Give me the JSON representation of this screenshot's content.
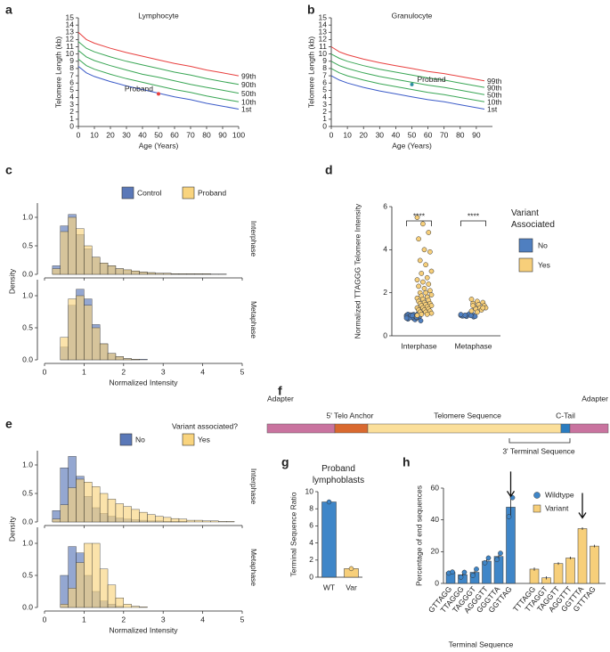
{
  "chart_data": [
    {
      "type": "line",
      "label": "a",
      "title": "Lymphocyte",
      "xlabel": "Age (Years)",
      "ylabel": "Telomere Length (kb)",
      "x": [
        0,
        5,
        10,
        20,
        30,
        40,
        50,
        60,
        70,
        80,
        90,
        100
      ],
      "xlim": [
        0,
        100
      ],
      "xticks": [
        0,
        10,
        20,
        30,
        40,
        50,
        60,
        70,
        80,
        90,
        100
      ],
      "ylim": [
        0,
        15
      ],
      "yticks": [
        0,
        1,
        2,
        3,
        4,
        5,
        6,
        7,
        8,
        9,
        10,
        11,
        12,
        13,
        14,
        15
      ],
      "series": [
        {
          "name": "99th",
          "color": "#e8403f",
          "values": [
            13,
            12,
            11.5,
            10.8,
            10.2,
            9.7,
            9.2,
            8.7,
            8.3,
            7.8,
            7.4,
            7.0
          ]
        },
        {
          "name": "90th",
          "color": "#3aa655",
          "values": [
            11.7,
            10.8,
            10.3,
            9.6,
            9.0,
            8.5,
            8.0,
            7.5,
            7.1,
            6.6,
            6.2,
            5.8
          ]
        },
        {
          "name": "50th",
          "color": "#3aa655",
          "values": [
            10.5,
            9.6,
            9.1,
            8.4,
            7.8,
            7.2,
            6.8,
            6.3,
            5.8,
            5.4,
            5.0,
            4.6
          ]
        },
        {
          "name": "10th",
          "color": "#3aa655",
          "values": [
            9.3,
            8.4,
            7.9,
            7.2,
            6.6,
            6.1,
            5.6,
            5.1,
            4.7,
            4.2,
            3.8,
            3.4
          ]
        },
        {
          "name": "1st",
          "color": "#3b5bc8",
          "values": [
            8.3,
            7.4,
            6.9,
            6.2,
            5.6,
            5.1,
            4.6,
            4.1,
            3.7,
            3.2,
            2.8,
            2.4
          ]
        }
      ],
      "points": [
        {
          "name": "Proband",
          "x": 50,
          "y": 4.5,
          "color": "#e8403f"
        }
      ]
    },
    {
      "type": "line",
      "label": "b",
      "title": "Granulocyte",
      "xlabel": "Age (Years)",
      "ylabel": "Telomere Length (kb)",
      "x": [
        0,
        5,
        10,
        20,
        30,
        40,
        50,
        60,
        70,
        80,
        95
      ],
      "xlim": [
        0,
        100
      ],
      "xticks": [
        0,
        10,
        20,
        30,
        40,
        50,
        60,
        70,
        80,
        90
      ],
      "ylim": [
        0,
        15
      ],
      "yticks": [
        0,
        1,
        2,
        3,
        4,
        5,
        6,
        7,
        8,
        9,
        10,
        11,
        12,
        13,
        14,
        15
      ],
      "series": [
        {
          "name": "99th",
          "color": "#e8403f",
          "values": [
            11.0,
            10.3,
            9.9,
            9.3,
            8.8,
            8.4,
            8.0,
            7.6,
            7.3,
            6.9,
            6.3
          ]
        },
        {
          "name": "90th",
          "color": "#3aa655",
          "values": [
            10.0,
            9.4,
            9.0,
            8.4,
            7.9,
            7.5,
            7.1,
            6.7,
            6.4,
            6.0,
            5.4
          ]
        },
        {
          "name": "50th",
          "color": "#3aa655",
          "values": [
            9.0,
            8.4,
            8.0,
            7.4,
            6.9,
            6.5,
            6.1,
            5.7,
            5.4,
            5.0,
            4.4
          ]
        },
        {
          "name": "10th",
          "color": "#3aa655",
          "values": [
            8.0,
            7.4,
            7.0,
            6.4,
            5.9,
            5.5,
            5.1,
            4.7,
            4.4,
            4.0,
            3.4
          ]
        },
        {
          "name": "1st",
          "color": "#3b5bc8",
          "values": [
            7.0,
            6.4,
            6.0,
            5.4,
            4.9,
            4.5,
            4.1,
            3.7,
            3.4,
            3.0,
            2.4
          ]
        }
      ],
      "points": [
        {
          "name": "Proband",
          "x": 50,
          "y": 5.8,
          "color": "#2f8fa0"
        }
      ]
    },
    {
      "type": "histogram",
      "label": "c",
      "xlabel": "Normalized Intensity",
      "ylabel": "Density",
      "bins": [
        0,
        0.2,
        0.4,
        0.6,
        0.8,
        1,
        1.2,
        1.4,
        1.6,
        1.8,
        2,
        2.2,
        2.4,
        2.6,
        2.8,
        3,
        3.2,
        3.4,
        3.6,
        3.8,
        4,
        4.2,
        4.4,
        4.6,
        4.8,
        5
      ],
      "xlim": [
        0,
        5
      ],
      "xticks": [
        0,
        1,
        2,
        3,
        4,
        5
      ],
      "ylim": [
        0,
        1.25
      ],
      "yticks": [
        {
          "value": 0,
          "label": "0.0"
        },
        {
          "value": 0.5,
          "label": "0.5"
        },
        {
          "value": 1,
          "label": "1.0"
        }
      ],
      "facets": [
        "Interphase",
        "Metaphase"
      ],
      "series": [
        {
          "name": "Control",
          "color": "#5a78b8",
          "values": [
            [
              0,
              0.15,
              0.85,
              1.05,
              0.7,
              0.45,
              0.3,
              0.2,
              0.15,
              0.1,
              0.07,
              0.05,
              0.04,
              0.03,
              0.02,
              0.02,
              0.01,
              0.01,
              0.01,
              0.01,
              0.01,
              0.005,
              0.005,
              0,
              0
            ],
            [
              0,
              0,
              0.2,
              0.85,
              1.1,
              0.95,
              0.55,
              0.25,
              0.1,
              0.05,
              0.02,
              0.01,
              0.01,
              0,
              0,
              0,
              0,
              0,
              0,
              0,
              0,
              0,
              0,
              0,
              0
            ]
          ]
        },
        {
          "name": "Proband",
          "color": "#f9d47e",
          "values": [
            [
              0,
              0.1,
              0.75,
              1.0,
              0.8,
              0.5,
              0.3,
              0.2,
              0.15,
              0.1,
              0.08,
              0.06,
              0.04,
              0.03,
              0.02,
              0.02,
              0.01,
              0.01,
              0.01,
              0.01,
              0.01,
              0.005,
              0.005,
              0,
              0
            ],
            [
              0,
              0,
              0.35,
              0.95,
              1.0,
              0.85,
              0.5,
              0.25,
              0.1,
              0.05,
              0.02,
              0.01,
              0,
              0,
              0,
              0,
              0,
              0,
              0,
              0,
              0,
              0,
              0,
              0,
              0
            ]
          ]
        }
      ]
    },
    {
      "type": "dots",
      "label": "d",
      "ylabel": "Normalized TTAGGG Telomere Intensity",
      "legend_title": "Variant Associated",
      "categories": [
        "Interphase",
        "Metaphase"
      ],
      "ylim": [
        0,
        6
      ],
      "yticks": [
        0,
        2,
        4,
        6
      ],
      "annotations": [
        "****",
        "****"
      ],
      "series": [
        {
          "name": "No",
          "color": "#4f7fc0",
          "values": [
            [
              0.95,
              0.9,
              0.85,
              1.0,
              0.8,
              0.92,
              0.88,
              0.75,
              1.05,
              0.97,
              0.83,
              0.9,
              0.86,
              0.93,
              0.78,
              0.99,
              0.89,
              0.84,
              0.91,
              0.7,
              0.96,
              0.87,
              0.82,
              0.94,
              1.02
            ],
            [
              0.95,
              0.9,
              1.0,
              0.92,
              0.97,
              0.88,
              0.93,
              1.02,
              0.9,
              0.96,
              0.94,
              0.99
            ]
          ]
        },
        {
          "name": "Yes",
          "color": "#f7cf7a",
          "values": [
            [
              5.5,
              5.2,
              4.8,
              4.5,
              4.0,
              3.9,
              3.5,
              3.3,
              3.0,
              2.9,
              2.7,
              2.6,
              2.5,
              2.4,
              2.3,
              2.2,
              2.1,
              2.0,
              2.0,
              1.9,
              1.85,
              1.8,
              1.75,
              1.7,
              1.65,
              1.6,
              1.55,
              1.5,
              1.5,
              1.45,
              1.4,
              1.4,
              1.35,
              1.3,
              1.3,
              1.25,
              1.2,
              1.2,
              1.15,
              1.1,
              1.1,
              1.05,
              1.0,
              1.0,
              0.95
            ],
            [
              1.7,
              1.6,
              1.55,
              1.5,
              1.45,
              1.4,
              1.35,
              1.3,
              1.3,
              1.25,
              1.2,
              1.15,
              1.1,
              1.3,
              1.4
            ]
          ]
        }
      ]
    },
    {
      "type": "histogram",
      "label": "e",
      "xlabel": "Normalized Intensity",
      "ylabel": "Density",
      "legend_title": "Variant associated?",
      "bins": [
        0,
        0.2,
        0.4,
        0.6,
        0.8,
        1,
        1.2,
        1.4,
        1.6,
        1.8,
        2,
        2.2,
        2.4,
        2.6,
        2.8,
        3,
        3.2,
        3.4,
        3.6,
        3.8,
        4,
        4.2,
        4.4,
        4.6,
        4.8,
        5
      ],
      "xlim": [
        0,
        5
      ],
      "xticks": [
        0,
        1,
        2,
        3,
        4,
        5
      ],
      "ylim": [
        0,
        1.25
      ],
      "yticks": [
        {
          "value": 0,
          "label": "0.0"
        },
        {
          "value": 0.5,
          "label": "0.5"
        },
        {
          "value": 1,
          "label": "1.0"
        }
      ],
      "facets": [
        "Interphase",
        "Metaphase"
      ],
      "series": [
        {
          "name": "No",
          "color": "#5a78b8",
          "values": [
            [
              0,
              0.2,
              0.95,
              1.15,
              0.8,
              0.45,
              0.25,
              0.15,
              0.1,
              0.07,
              0.05,
              0.04,
              0.03,
              0.02,
              0.02,
              0.01,
              0.01,
              0.01,
              0,
              0,
              0,
              0,
              0,
              0,
              0
            ],
            [
              0,
              0,
              0.5,
              0.95,
              0.85,
              0.5,
              0.25,
              0.1,
              0.05,
              0.02,
              0,
              0,
              0,
              0,
              0,
              0,
              0,
              0,
              0,
              0,
              0,
              0,
              0,
              0,
              0
            ]
          ]
        },
        {
          "name": "Yes",
          "color": "#f9d47e",
          "values": [
            [
              0,
              0.05,
              0.3,
              0.6,
              0.75,
              0.7,
              0.62,
              0.5,
              0.4,
              0.32,
              0.27,
              0.22,
              0.17,
              0.13,
              0.1,
              0.08,
              0.06,
              0.05,
              0.03,
              0.03,
              0.02,
              0.02,
              0.01,
              0.01,
              0
            ],
            [
              0,
              0,
              0.05,
              0.3,
              0.7,
              1.0,
              1.0,
              0.6,
              0.35,
              0.15,
              0.05,
              0.02,
              0.01,
              0,
              0,
              0,
              0,
              0,
              0,
              0,
              0,
              0,
              0,
              0,
              0
            ]
          ]
        }
      ]
    },
    {
      "type": "bar",
      "label": "g",
      "title": "Proband lymphoblasts",
      "ylabel": "Terminal Sequence Ratio",
      "categories": [
        "WT",
        "Var"
      ],
      "values": [
        8.8,
        1.0
      ],
      "points": [
        8.8,
        1.0
      ],
      "colors": [
        "#3f86c8",
        "#f7cf7a"
      ],
      "ylim": [
        0,
        10
      ],
      "yticks": [
        0,
        2,
        4,
        6,
        8,
        10
      ]
    },
    {
      "type": "bar",
      "label": "h",
      "xlabel": "Terminal Sequence",
      "ylabel": "Percentage of end sequences",
      "categories": [
        "GTTAGG",
        "TTAGGG",
        "TAGGGT",
        "AGGGTT",
        "GGGTTA",
        "GGTTAG",
        "TTTAGG",
        "TTAGGT",
        "TAGGTT",
        "AGGTTT",
        "GGTTTA",
        "GTTTAG"
      ],
      "ylim": [
        0,
        60
      ],
      "yticks": [
        0,
        20,
        40,
        60
      ],
      "series": [
        {
          "name": "Wildtype",
          "color": "#3f86c8",
          "values": [
            7,
            5.5,
            7,
            14,
            17,
            48,
            null,
            null,
            null,
            null,
            null,
            null
          ],
          "errors": [
            0.5,
            1.5,
            2,
            1.5,
            2,
            6,
            null,
            null,
            null,
            null,
            null,
            null
          ],
          "points": [
            [
              6.5,
              7.2
            ],
            [
              4,
              7
            ],
            [
              5,
              9
            ],
            [
              13,
              16
            ],
            [
              15,
              19
            ],
            [
              42,
              54
            ],
            null,
            null,
            null,
            null,
            null,
            null
          ]
        },
        {
          "name": "Variant",
          "color": "#f7cf7a",
          "values": [
            null,
            null,
            null,
            null,
            null,
            null,
            9,
            3.5,
            12.5,
            16,
            34.5,
            23.5
          ],
          "errors": [
            null,
            null,
            null,
            null,
            null,
            null,
            1,
            1,
            0.8,
            0.8,
            0.8,
            0.8
          ]
        }
      ]
    }
  ],
  "diagram": {
    "label": "f",
    "adapter_left": "Adapter",
    "anchor": "5' Telo Anchor",
    "telomere": "Telomere Sequence",
    "c_tail": "C-Tail",
    "adapter_right": "Adapter",
    "terminal": "3' Terminal Sequence"
  }
}
